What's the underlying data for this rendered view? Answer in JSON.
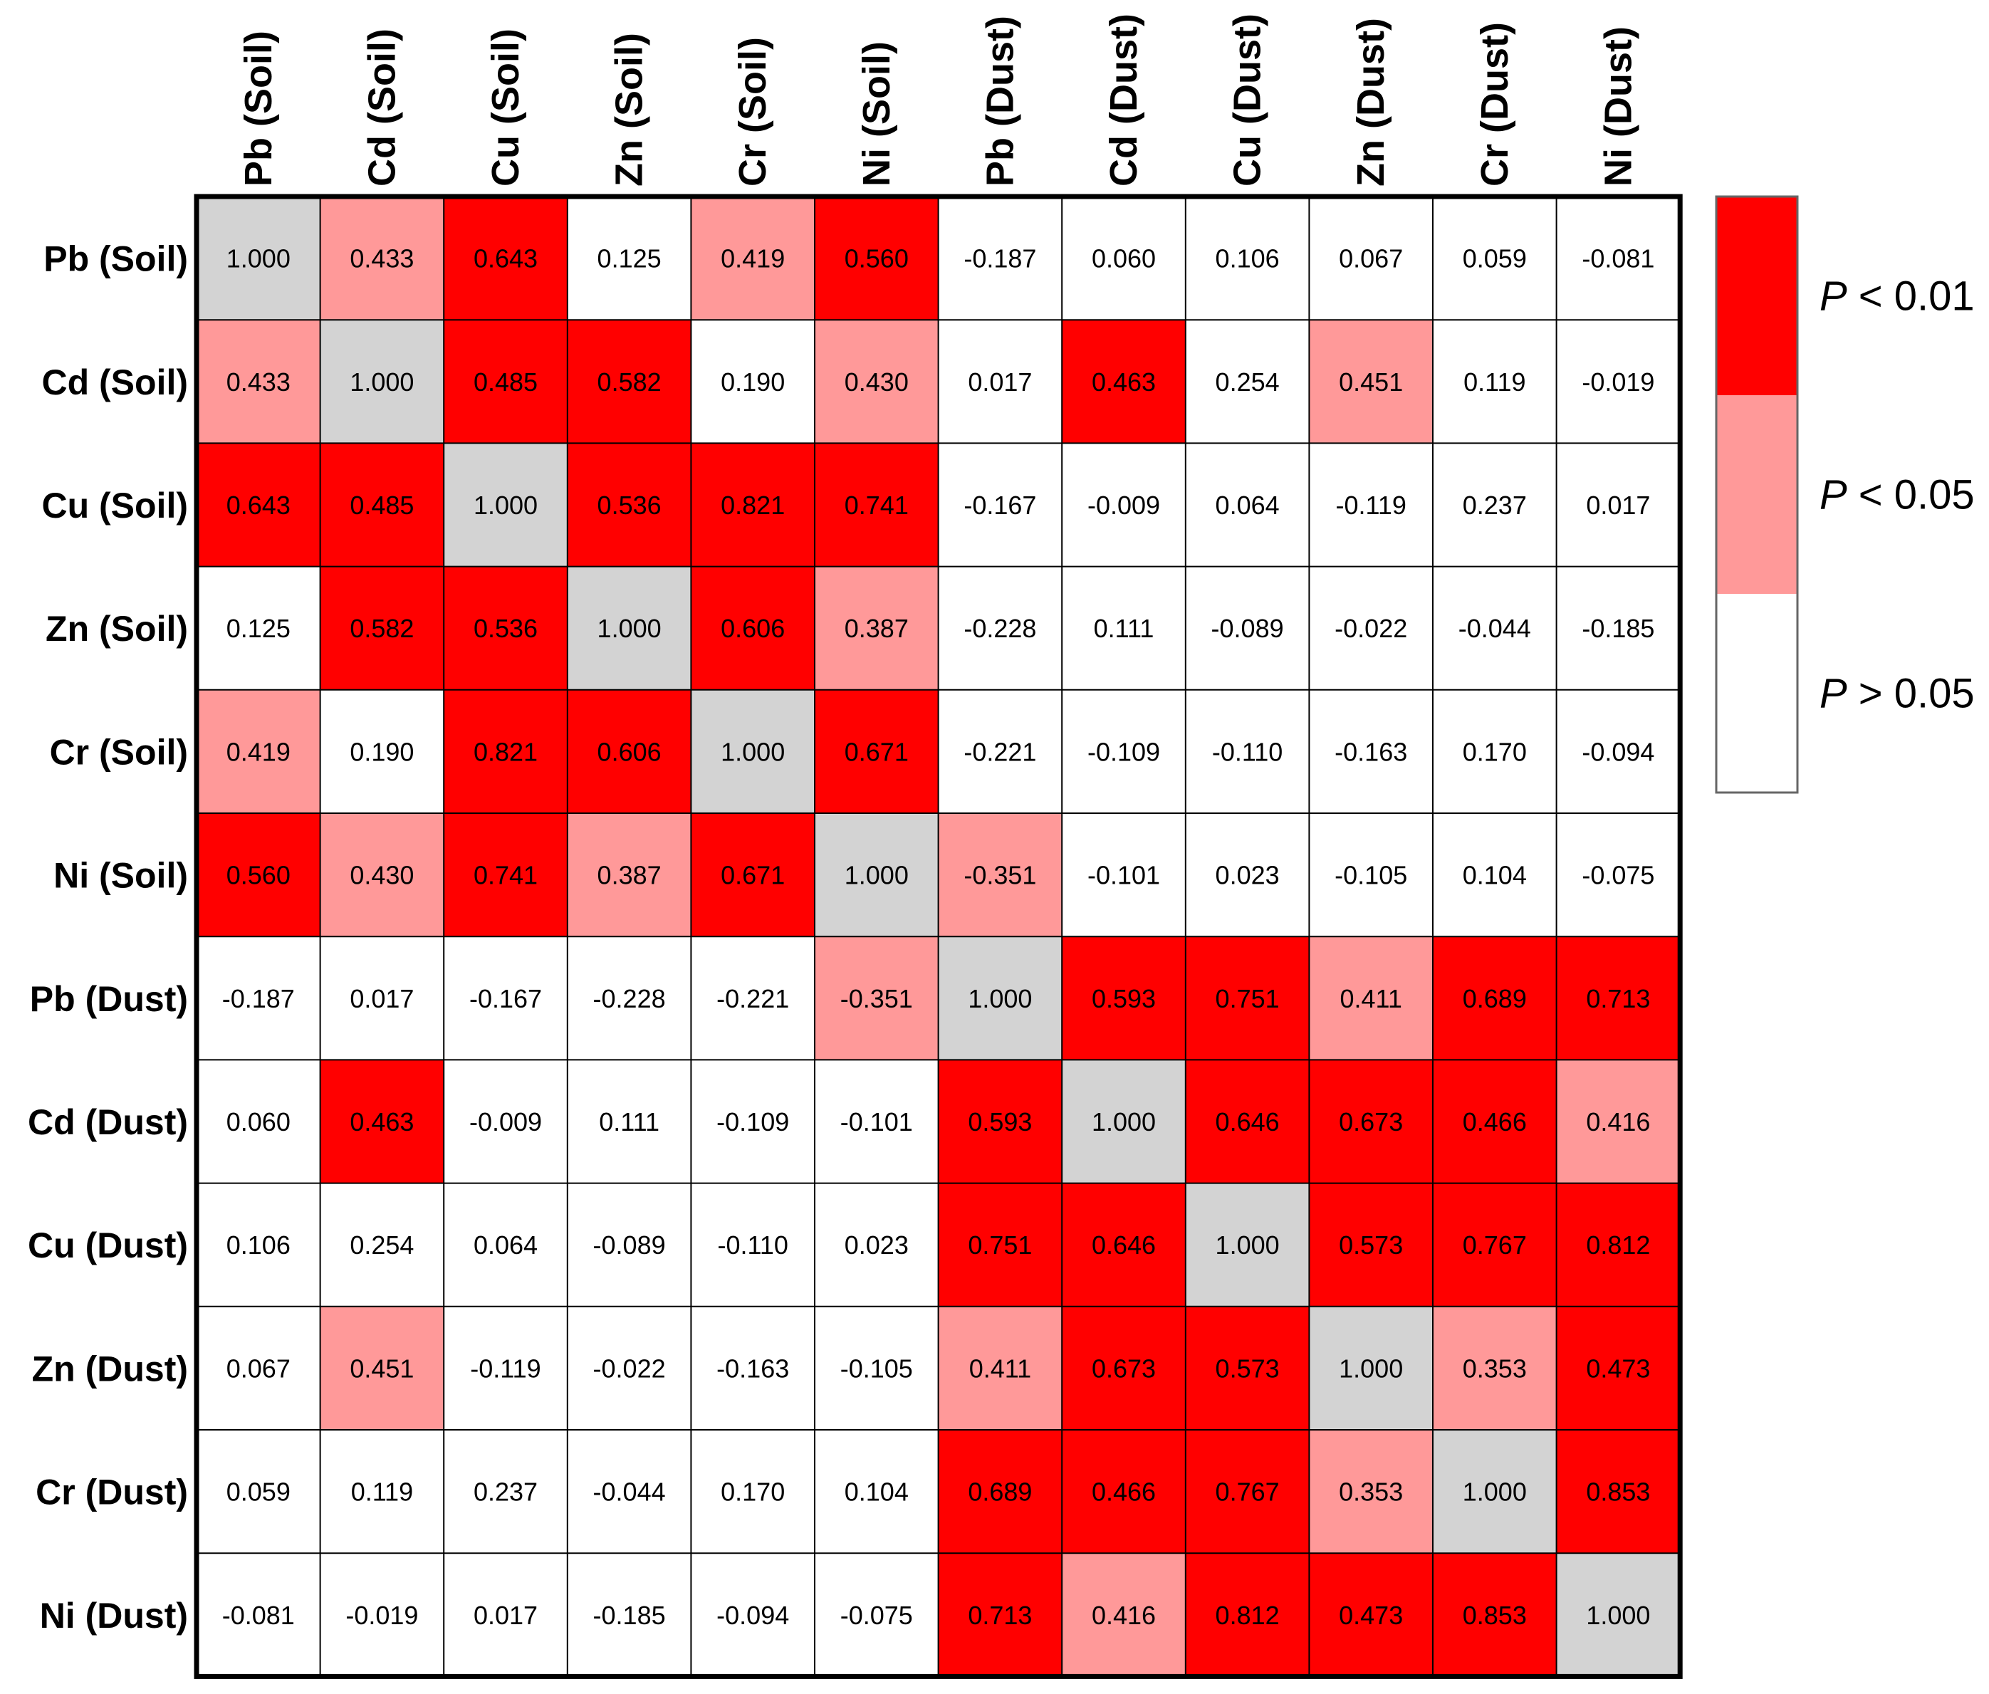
{
  "chart_data": {
    "type": "heatmap",
    "title": "",
    "labels": [
      "Pb (Soil)",
      "Cd (Soil)",
      "Cu (Soil)",
      "Zn (Soil)",
      "Cr (Soil)",
      "Ni (Soil)",
      "Pb (Dust)",
      "Cd (Dust)",
      "Cu (Dust)",
      "Zn (Dust)",
      "Cr (Dust)",
      "Ni (Dust)"
    ],
    "values": [
      [
        "1.000",
        "0.433",
        "0.643",
        "0.125",
        "0.419",
        "0.560",
        "-0.187",
        "0.060",
        "0.106",
        "0.067",
        "0.059",
        "-0.081"
      ],
      [
        "0.433",
        "1.000",
        "0.485",
        "0.582",
        "0.190",
        "0.430",
        "0.017",
        "0.463",
        "0.254",
        "0.451",
        "0.119",
        "-0.019"
      ],
      [
        "0.643",
        "0.485",
        "1.000",
        "0.536",
        "0.821",
        "0.741",
        "-0.167",
        "-0.009",
        "0.064",
        "-0.119",
        "0.237",
        "0.017"
      ],
      [
        "0.125",
        "0.582",
        "0.536",
        "1.000",
        "0.606",
        "0.387",
        "-0.228",
        "0.111",
        "-0.089",
        "-0.022",
        "-0.044",
        "-0.185"
      ],
      [
        "0.419",
        "0.190",
        "0.821",
        "0.606",
        "1.000",
        "0.671",
        "-0.221",
        "-0.109",
        "-0.110",
        "-0.163",
        "0.170",
        "-0.094"
      ],
      [
        "0.560",
        "0.430",
        "0.741",
        "0.387",
        "0.671",
        "1.000",
        "-0.351",
        "-0.101",
        "0.023",
        "-0.105",
        "0.104",
        "-0.075"
      ],
      [
        "-0.187",
        "0.017",
        "-0.167",
        "-0.228",
        "-0.221",
        "-0.351",
        "1.000",
        "0.593",
        "0.751",
        "0.411",
        "0.689",
        "0.713"
      ],
      [
        "0.060",
        "0.463",
        "-0.009",
        "0.111",
        "-0.109",
        "-0.101",
        "0.593",
        "1.000",
        "0.646",
        "0.673",
        "0.466",
        "0.416"
      ],
      [
        "0.106",
        "0.254",
        "0.064",
        "-0.089",
        "-0.110",
        "0.023",
        "0.751",
        "0.646",
        "1.000",
        "0.573",
        "0.767",
        "0.812"
      ],
      [
        "0.067",
        "0.451",
        "-0.119",
        "-0.022",
        "-0.163",
        "-0.105",
        "0.411",
        "0.673",
        "0.573",
        "1.000",
        "0.353",
        "0.473"
      ],
      [
        "0.059",
        "0.119",
        "0.237",
        "-0.044",
        "0.170",
        "0.104",
        "0.689",
        "0.466",
        "0.767",
        "0.353",
        "1.000",
        "0.853"
      ],
      [
        "-0.081",
        "-0.019",
        "0.017",
        "-0.185",
        "-0.094",
        "-0.075",
        "0.713",
        "0.416",
        "0.812",
        "0.473",
        "0.853",
        "1.000"
      ]
    ],
    "significance": [
      [
        "d",
        "m",
        "s",
        "n",
        "m",
        "s",
        "n",
        "n",
        "n",
        "n",
        "n",
        "n"
      ],
      [
        "m",
        "d",
        "s",
        "s",
        "n",
        "m",
        "n",
        "s",
        "n",
        "m",
        "n",
        "n"
      ],
      [
        "s",
        "s",
        "d",
        "s",
        "s",
        "s",
        "n",
        "n",
        "n",
        "n",
        "n",
        "n"
      ],
      [
        "n",
        "s",
        "s",
        "d",
        "s",
        "m",
        "n",
        "n",
        "n",
        "n",
        "n",
        "n"
      ],
      [
        "m",
        "n",
        "s",
        "s",
        "d",
        "s",
        "n",
        "n",
        "n",
        "n",
        "n",
        "n"
      ],
      [
        "s",
        "m",
        "s",
        "m",
        "s",
        "d",
        "m",
        "n",
        "n",
        "n",
        "n",
        "n"
      ],
      [
        "n",
        "n",
        "n",
        "n",
        "n",
        "m",
        "d",
        "s",
        "s",
        "m",
        "s",
        "s"
      ],
      [
        "n",
        "s",
        "n",
        "n",
        "n",
        "n",
        "s",
        "d",
        "s",
        "s",
        "s",
        "m"
      ],
      [
        "n",
        "n",
        "n",
        "n",
        "n",
        "n",
        "s",
        "s",
        "d",
        "s",
        "s",
        "s"
      ],
      [
        "n",
        "m",
        "n",
        "n",
        "n",
        "n",
        "m",
        "s",
        "s",
        "d",
        "m",
        "s"
      ],
      [
        "n",
        "n",
        "n",
        "n",
        "n",
        "n",
        "s",
        "s",
        "s",
        "m",
        "d",
        "s"
      ],
      [
        "n",
        "n",
        "n",
        "n",
        "n",
        "n",
        "s",
        "m",
        "s",
        "s",
        "s",
        "d"
      ]
    ],
    "legend": {
      "placement": "right",
      "entries": [
        {
          "key": "s",
          "p": "P",
          "rest": " < 0.01",
          "color": "#ff0000"
        },
        {
          "key": "m",
          "p": "P",
          "rest": " < 0.05",
          "color": "#ff9999"
        },
        {
          "key": "n",
          "p": "P",
          "rest": " > 0.05",
          "color": "#ffffff"
        }
      ]
    },
    "colors": {
      "s": "#ff0000",
      "m": "#ff9999",
      "n": "#ffffff",
      "d": "#d3d3d3"
    }
  }
}
